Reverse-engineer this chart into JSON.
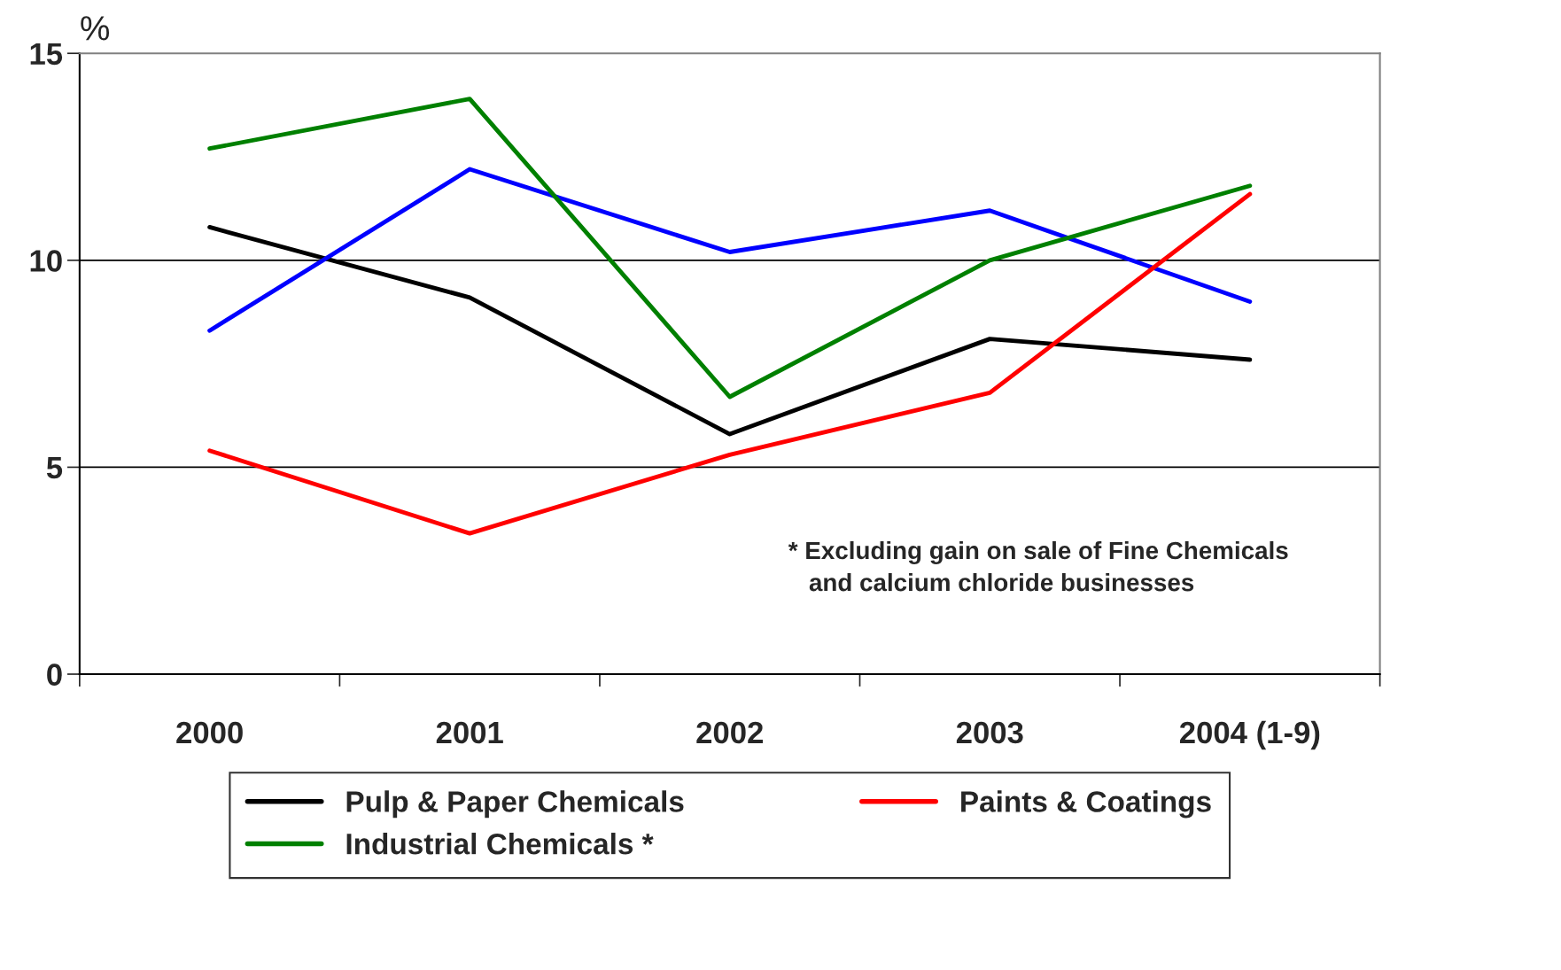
{
  "chart_data": {
    "type": "line",
    "ylabel": "%",
    "categories": [
      "2000",
      "2001",
      "2002",
      "2003",
      "2004 (1-9)"
    ],
    "series": [
      {
        "name": "Pulp & Paper Chemicals",
        "color": "#000000",
        "values": [
          10.8,
          9.1,
          5.8,
          8.1,
          7.6
        ]
      },
      {
        "color": "#0000ff",
        "values": [
          8.3,
          12.2,
          10.2,
          11.2,
          9.0
        ]
      },
      {
        "name": "Industrial Chemicals *",
        "color": "#008000",
        "values": [
          12.7,
          13.9,
          6.7,
          10.0,
          11.8
        ]
      },
      {
        "name": "Paints & Coatings",
        "color": "#ff0000",
        "values": [
          5.4,
          3.4,
          5.3,
          6.8,
          11.6
        ]
      }
    ],
    "ylim": [
      0,
      15
    ],
    "yticks": [
      0,
      5,
      10,
      15
    ],
    "grid": "y",
    "legend": "bottom",
    "marker": "none",
    "line_style": "solid",
    "annotations": [
      "* Excluding gain on sale of Fine Chemicals\n   and calcium chloride businesses"
    ]
  }
}
